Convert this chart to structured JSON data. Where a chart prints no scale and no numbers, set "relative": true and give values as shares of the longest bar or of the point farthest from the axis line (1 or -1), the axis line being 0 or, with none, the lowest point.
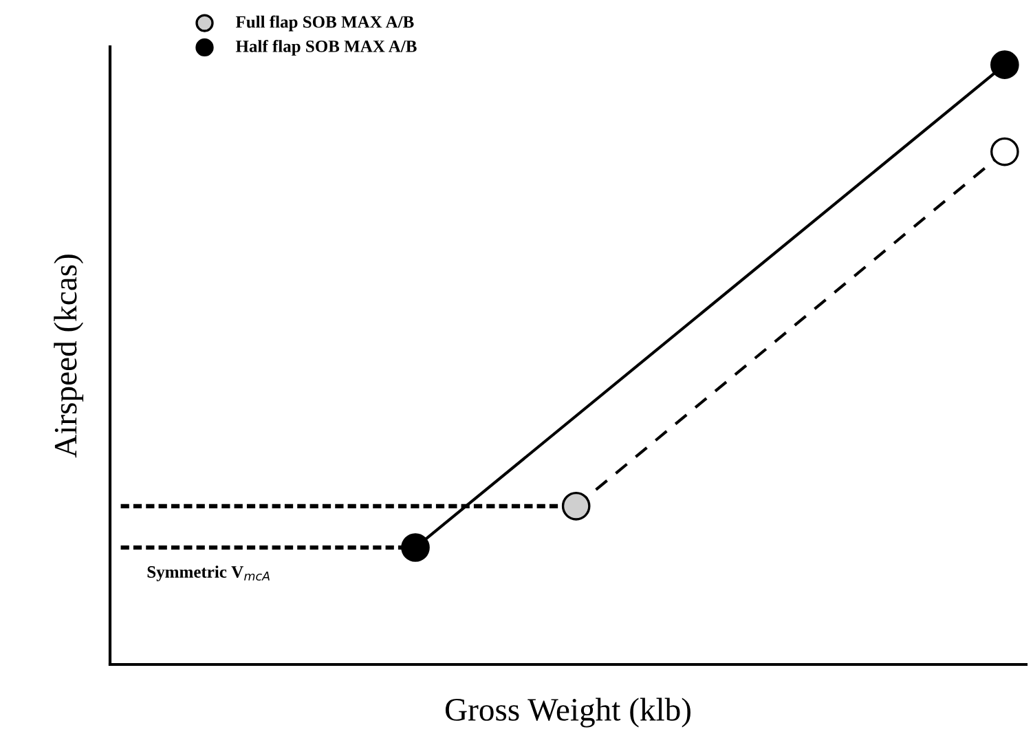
{
  "chart_data": {
    "type": "line",
    "relative": true,
    "xlabel": "Gross Weight (klb)",
    "ylabel": "Airspeed (kcas)",
    "ylim": [
      0,
      1.03
    ],
    "legend": "top left",
    "categories": [
      null,
      null,
      null,
      null,
      null,
      null,
      null,
      null,
      null,
      null,
      null,
      null,
      null,
      null,
      null,
      null,
      null,
      null,
      null,
      null,
      null,
      null,
      null,
      null,
      null,
      null,
      null,
      null,
      null,
      null,
      null,
      null,
      null,
      null
    ],
    "annotations": [
      "Symmetric V$_{mcA}$"
    ],
    "series": [
      {
        "name": "Full flap SOB MAX A/B",
        "color": "#000000",
        "colors": [
          null,
          null,
          null,
          null,
          null,
          null,
          null,
          null,
          null,
          null,
          null,
          null,
          null,
          null,
          null,
          null,
          null,
          "#cfcfcf",
          null,
          null,
          null,
          null,
          null,
          null,
          null,
          null,
          null,
          null,
          null,
          null,
          null,
          null,
          null,
          "#ffffff"
        ],
        "values": [
          null,
          null,
          null,
          null,
          null,
          null,
          null,
          null,
          null,
          null,
          null,
          null,
          null,
          null,
          null,
          null,
          null,
          0.264,
          null,
          null,
          null,
          null,
          null,
          null,
          null,
          null,
          null,
          null,
          null,
          null,
          null,
          null,
          null,
          0.855
        ],
        "line_style": "dashed",
        "marker": "circle"
      },
      {
        "name": "Half flap SOB MAX A/B",
        "color": "#000000",
        "values": [
          null,
          null,
          null,
          null,
          null,
          null,
          null,
          null,
          null,
          null,
          null,
          0.195,
          null,
          null,
          null,
          null,
          null,
          null,
          null,
          null,
          null,
          null,
          null,
          null,
          null,
          null,
          null,
          null,
          null,
          null,
          null,
          null,
          null,
          1
        ],
        "line_style": "solid",
        "marker": "circle"
      },
      {
        "color": "#000000",
        "values": [
          0.264,
          0.264,
          0.264,
          0.264,
          0.264,
          0.264,
          0.264,
          0.264,
          0.264,
          0.264,
          0.264,
          0.264,
          0.264,
          0.264,
          0.264,
          0.264,
          0.264,
          0.264,
          null,
          null,
          null,
          null,
          null,
          null,
          null,
          null,
          null,
          null,
          null,
          null,
          null,
          null,
          null,
          null
        ],
        "line_style": "dotted"
      },
      {
        "color": "#000000",
        "values": [
          0.195,
          0.195,
          0.195,
          0.195,
          0.195,
          0.195,
          0.195,
          0.195,
          0.195,
          0.195,
          0.195,
          0.195,
          null,
          null,
          null,
          null,
          null,
          null,
          null,
          null,
          null,
          null,
          null,
          null,
          null,
          null,
          null,
          null,
          null,
          null,
          null,
          null,
          null,
          null
        ],
        "line_style": "dotted"
      }
    ]
  }
}
